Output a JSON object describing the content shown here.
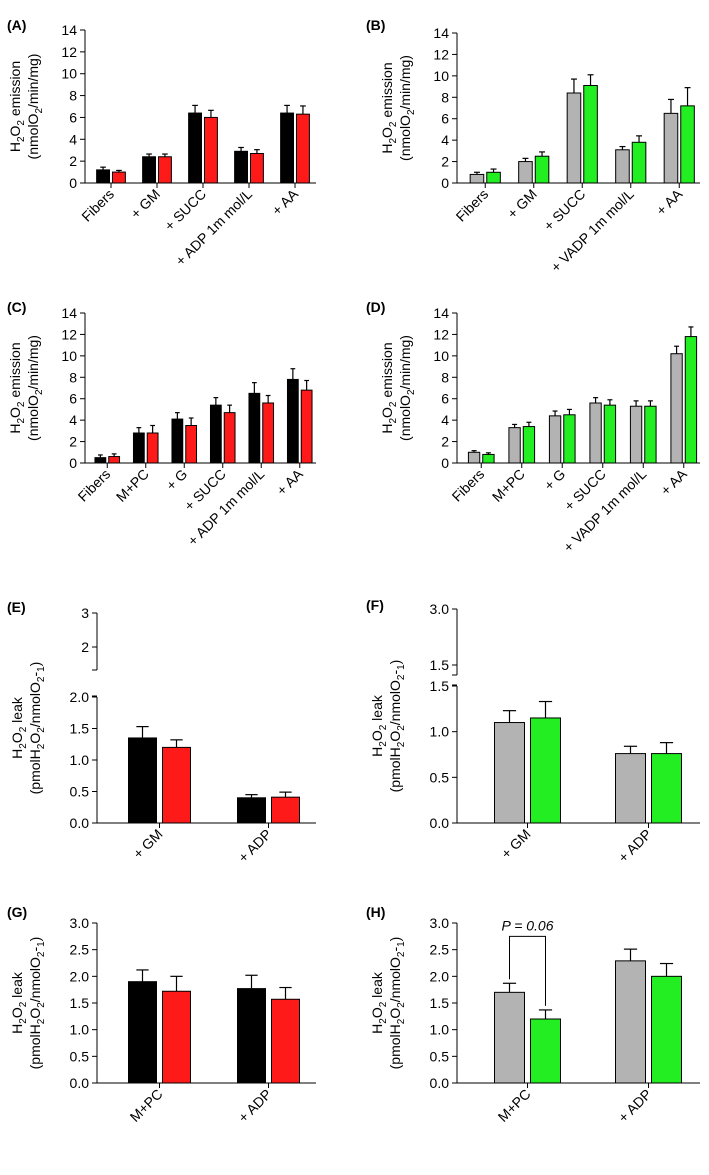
{
  "colors": {
    "black": "#000000",
    "red": "#ff1a1a",
    "gray": "#b3b3b3",
    "green": "#22ee22"
  },
  "chart_data": [
    {
      "id": "A",
      "panel_label": "(A)",
      "type": "bar",
      "ylabel": [
        "H2O2 emission",
        "(nmolO2/min/mg)"
      ],
      "ylim": [
        0,
        14
      ],
      "yticks": [
        0,
        2,
        4,
        6,
        8,
        10,
        12,
        14
      ],
      "categories": [
        "Fibers",
        "+ GM",
        "+ SUCC",
        "+ ADP 1m mol/L",
        "+ AA"
      ],
      "series": [
        {
          "color": "black",
          "values": [
            1.2,
            2.4,
            6.4,
            2.9,
            6.4
          ],
          "errors": [
            0.25,
            0.25,
            0.7,
            0.35,
            0.7
          ]
        },
        {
          "color": "red",
          "values": [
            1.0,
            2.4,
            6.0,
            2.7,
            6.3
          ],
          "errors": [
            0.15,
            0.25,
            0.65,
            0.35,
            0.75
          ]
        }
      ]
    },
    {
      "id": "B",
      "panel_label": "(B)",
      "type": "bar",
      "ylabel": [
        "H2O2 emission",
        "(nmolO2/min/mg)"
      ],
      "ylim": [
        0,
        14
      ],
      "yticks": [
        0,
        2,
        4,
        6,
        8,
        10,
        12,
        14
      ],
      "categories": [
        "Fibers",
        "+ GM",
        "+ SUCC",
        "+ VADP 1m mol/L",
        "+ AA"
      ],
      "series": [
        {
          "color": "gray",
          "values": [
            0.8,
            2.0,
            8.4,
            3.1,
            6.5
          ],
          "errors": [
            0.2,
            0.3,
            1.3,
            0.3,
            1.3
          ]
        },
        {
          "color": "green",
          "values": [
            1.0,
            2.5,
            9.1,
            3.8,
            7.2
          ],
          "errors": [
            0.3,
            0.4,
            1.0,
            0.6,
            1.7
          ]
        }
      ]
    },
    {
      "id": "C",
      "panel_label": "(C)",
      "type": "bar",
      "ylabel": [
        "H2O2 emission",
        "(nmolO2/min/mg)"
      ],
      "ylim": [
        0,
        14
      ],
      "yticks": [
        0,
        2,
        4,
        6,
        8,
        10,
        12,
        14
      ],
      "categories": [
        "Fibers",
        "M+PC",
        "+ G",
        "+ SUCC",
        "+ ADP 1m mol/L",
        "+ AA"
      ],
      "series": [
        {
          "color": "black",
          "values": [
            0.5,
            2.8,
            4.1,
            5.4,
            6.5,
            7.8
          ],
          "errors": [
            0.25,
            0.5,
            0.6,
            0.7,
            1.0,
            1.0
          ]
        },
        {
          "color": "red",
          "values": [
            0.6,
            2.8,
            3.5,
            4.7,
            5.6,
            6.8
          ],
          "errors": [
            0.25,
            0.7,
            0.7,
            0.7,
            0.7,
            0.9
          ]
        }
      ]
    },
    {
      "id": "D",
      "panel_label": "(D)",
      "type": "bar",
      "ylabel": [
        "H2O2 emission",
        "(nmolO2/min/mg)"
      ],
      "ylim": [
        0,
        14
      ],
      "yticks": [
        0,
        2,
        4,
        6,
        8,
        10,
        12,
        14
      ],
      "categories": [
        "Fibers",
        "M+PC",
        "+ G",
        "+ SUCC",
        "+ VADP 1m mol/L",
        "+ AA"
      ],
      "series": [
        {
          "color": "gray",
          "values": [
            1.0,
            3.3,
            4.4,
            5.6,
            5.3,
            10.2
          ],
          "errors": [
            0.15,
            0.3,
            0.45,
            0.5,
            0.5,
            0.7
          ]
        },
        {
          "color": "green",
          "values": [
            0.8,
            3.4,
            4.5,
            5.4,
            5.3,
            11.8
          ],
          "errors": [
            0.15,
            0.4,
            0.5,
            0.5,
            0.5,
            0.9
          ]
        }
      ]
    },
    {
      "id": "E",
      "panel_label": "(E)",
      "type": "bar",
      "ylabel": [
        "H2O2 leak",
        "(pmolH2O2/nmolO2-1)"
      ],
      "ylim": [
        0,
        2.0
      ],
      "yticks": [
        0.0,
        0.5,
        1.0,
        1.5,
        2.0
      ],
      "broken_axis": {
        "upper_ticks": [
          "2",
          "3"
        ]
      },
      "categories": [
        "+ GM",
        "+ ADP"
      ],
      "series": [
        {
          "color": "black",
          "values": [
            1.35,
            0.4
          ],
          "errors": [
            0.18,
            0.05
          ]
        },
        {
          "color": "red",
          "values": [
            1.2,
            0.41
          ],
          "errors": [
            0.12,
            0.08
          ]
        }
      ]
    },
    {
      "id": "F",
      "panel_label": "(F)",
      "type": "bar",
      "ylabel": [
        "H2O2 leak",
        "(pmolH2O2/nmolO2-1)"
      ],
      "ylim": [
        0,
        1.5
      ],
      "yticks": [
        0.0,
        0.5,
        1.0,
        1.5
      ],
      "broken_axis": {
        "upper_ticks": [
          "1.5",
          "3.0"
        ]
      },
      "categories": [
        "+ GM",
        "+ ADP"
      ],
      "series": [
        {
          "color": "gray",
          "values": [
            1.1,
            0.76
          ],
          "errors": [
            0.13,
            0.08
          ]
        },
        {
          "color": "green",
          "values": [
            1.15,
            0.76
          ],
          "errors": [
            0.18,
            0.12
          ]
        }
      ]
    },
    {
      "id": "G",
      "panel_label": "(G)",
      "type": "bar",
      "ylabel": [
        "H2O2 leak",
        "(pmolH2O2/nmolO2-1)"
      ],
      "ylim": [
        0,
        3.0
      ],
      "yticks": [
        0.0,
        0.5,
        1.0,
        1.5,
        2.0,
        2.5,
        3.0
      ],
      "categories": [
        "M+PC",
        "+ ADP"
      ],
      "series": [
        {
          "color": "black",
          "values": [
            1.9,
            1.77
          ],
          "errors": [
            0.22,
            0.25
          ]
        },
        {
          "color": "red",
          "values": [
            1.72,
            1.57
          ],
          "errors": [
            0.28,
            0.22
          ]
        }
      ]
    },
    {
      "id": "H",
      "panel_label": "(H)",
      "type": "bar",
      "ylabel": [
        "H2O2 leak",
        "(pmolH2O2/nmolO2-1)"
      ],
      "ylim": [
        0,
        3.0
      ],
      "yticks": [
        0.0,
        0.5,
        1.0,
        1.5,
        2.0,
        2.5,
        3.0
      ],
      "categories": [
        "M+PC",
        "+ ADP"
      ],
      "annotation": "P = 0.06",
      "series": [
        {
          "color": "gray",
          "values": [
            1.7,
            2.29
          ],
          "errors": [
            0.17,
            0.22
          ]
        },
        {
          "color": "green",
          "values": [
            1.2,
            2.0
          ],
          "errors": [
            0.17,
            0.24
          ]
        }
      ]
    }
  ]
}
